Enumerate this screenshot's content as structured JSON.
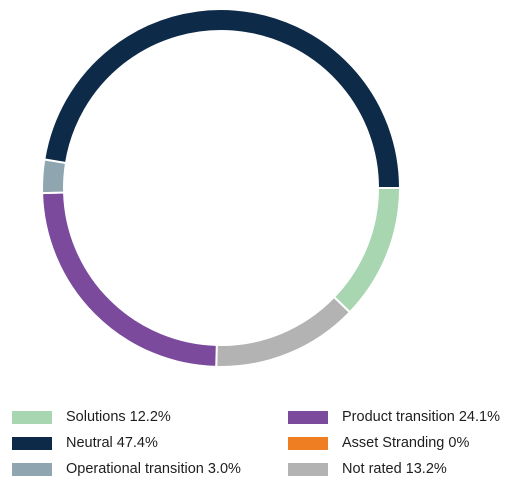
{
  "chart_data": {
    "type": "pie",
    "title": "",
    "donut": true,
    "start_angle_deg": 0,
    "direction": "clockwise",
    "slices": [
      {
        "label": "Solutions 12.2%",
        "value": 12.2,
        "color": "#a8d6b1"
      },
      {
        "label": "Not rated 13.2%",
        "value": 13.2,
        "color": "#b3b3b3"
      },
      {
        "label": "Product transition 24.1%",
        "value": 24.1,
        "color": "#7b4a9c"
      },
      {
        "label": "Operational transition 3.0%",
        "value": 3.0,
        "color": "#8fa5b0"
      },
      {
        "label": "Neutral 47.4%",
        "value": 47.4,
        "color": "#0d2a48"
      },
      {
        "label": "Asset Stranding 0%",
        "value": 0,
        "color": "#ef7d22"
      }
    ],
    "legend": {
      "placement": "bottom",
      "columns": [
        [
          "Solutions 12.2%",
          "Neutral 47.4%",
          "Operational transition 3.0%"
        ],
        [
          "Product transition 24.1%",
          "Asset Stranding 0%",
          "Not rated 13.2%"
        ]
      ]
    }
  }
}
